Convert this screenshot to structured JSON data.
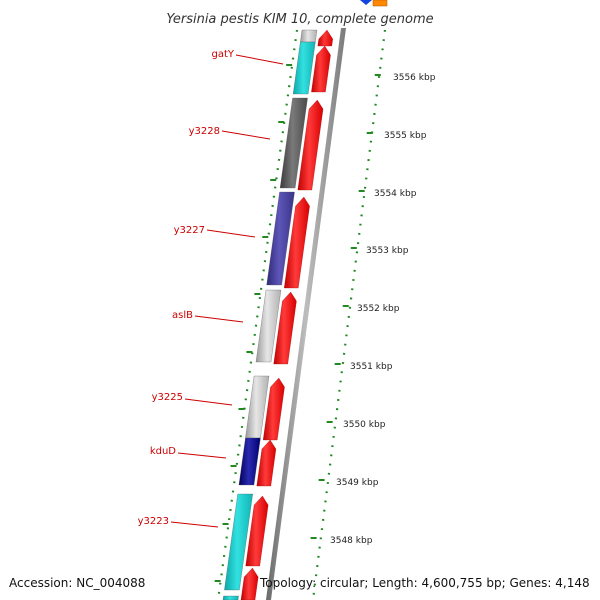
{
  "title": "Yersinia pestis KIM 10, complete genome",
  "footer": {
    "accession": "Accession: NC_004088",
    "summary": "Topology: circular; Length: 4,600,755 bp; Genes: 4,148"
  },
  "genes": [
    {
      "name": "gatY"
    },
    {
      "name": "y3228"
    },
    {
      "name": "y3227"
    },
    {
      "name": "aslB"
    },
    {
      "name": "y3225"
    },
    {
      "name": "kduD"
    },
    {
      "name": "y3223"
    }
  ],
  "ruler": [
    {
      "label": "3556 kbp"
    },
    {
      "label": "3555 kbp"
    },
    {
      "label": "3554 kbp"
    },
    {
      "label": "3553 kbp"
    },
    {
      "label": "3552 kbp"
    },
    {
      "label": "3551 kbp"
    },
    {
      "label": "3550 kbp"
    },
    {
      "label": "3549 kbp"
    },
    {
      "label": "3548 kbp"
    }
  ],
  "colors": {
    "forward_strand": "#ee1111",
    "top_arrow": "#1144dd",
    "top_box": "#ff8800",
    "tick": "#228822",
    "backbone": "#888888",
    "label": "#cc0000"
  }
}
